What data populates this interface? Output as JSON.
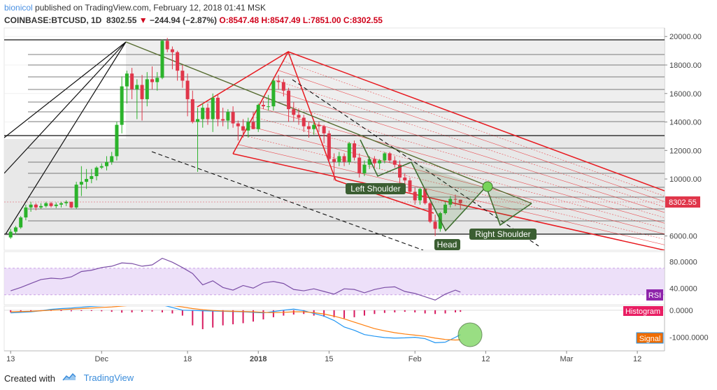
{
  "header": {
    "user": "bionicol",
    "published_text": "published on TradingView.com, February 12, 2018 01:41 MSK",
    "symbol": "COINBASE:BTCUSD, 1D",
    "last": "8302.55",
    "change": "−244.94 (−2.87%)",
    "open": "O:8547.48",
    "high": "H:8547.49",
    "low": "L:7851.00",
    "close": "C:8302.55"
  },
  "footer": {
    "created_with": "Created with",
    "brand": "TradingView"
  },
  "chart_data": [
    {
      "type": "candlestick",
      "price_axis": {
        "ticks": [
          "20000.00",
          "18000.00",
          "16000.00",
          "14000.00",
          "12000.00",
          "10000.00",
          "6000.00"
        ],
        "tick_values": [
          20000,
          18000,
          16000,
          14000,
          12000,
          10000,
          6000
        ],
        "current_price_label": "8302.55",
        "ylim": [
          5000,
          20600
        ]
      },
      "time_axis": {
        "labels": [
          "13",
          "Dec",
          "18",
          "2018",
          "15",
          "Feb",
          "12",
          "Mar",
          "12"
        ],
        "label_days": [
          0,
          18,
          35,
          49,
          63,
          80,
          94,
          110,
          124
        ]
      },
      "xlim_days": [
        -1,
        128
      ],
      "candles": [
        [
          0,
          5900,
          6500,
          5800,
          6300
        ],
        [
          1,
          6300,
          6700,
          6100,
          6600
        ],
        [
          2,
          6600,
          7400,
          6500,
          7300
        ],
        [
          3,
          7300,
          8200,
          7100,
          8000
        ],
        [
          4,
          8000,
          8400,
          7700,
          8200
        ],
        [
          5,
          8200,
          8300,
          7800,
          8000
        ],
        [
          6,
          8000,
          8300,
          7900,
          8100
        ],
        [
          7,
          8100,
          8400,
          8000,
          8300
        ],
        [
          8,
          8300,
          8400,
          8000,
          8100
        ],
        [
          9,
          8100,
          8350,
          7950,
          8200
        ],
        [
          10,
          8200,
          8400,
          8000,
          8300
        ],
        [
          11,
          8300,
          8500,
          8100,
          8400
        ],
        [
          12,
          8400,
          8350,
          7950,
          8000
        ],
        [
          13,
          8000,
          9800,
          7900,
          9600
        ],
        [
          14,
          9600,
          10900,
          8800,
          9800
        ],
        [
          15,
          9800,
          10700,
          9300,
          10000
        ],
        [
          16,
          10000,
          10700,
          9700,
          10200
        ],
        [
          17,
          10200,
          10900,
          9900,
          10800
        ],
        [
          18,
          10800,
          11100,
          10700,
          10900
        ],
        [
          19,
          10900,
          11600,
          10600,
          11200
        ],
        [
          20,
          11200,
          11900,
          11000,
          11600
        ],
        [
          21,
          11600,
          14000,
          11300,
          13800
        ],
        [
          22,
          13800,
          17200,
          13200,
          16500
        ],
        [
          23,
          16500,
          17600,
          15300,
          17400
        ],
        [
          24,
          17400,
          17800,
          15600,
          16300
        ],
        [
          25,
          16300,
          17000,
          14200,
          16600
        ],
        [
          26,
          16600,
          17300,
          14100,
          15600
        ],
        [
          27,
          15600,
          17500,
          15100,
          17000
        ],
        [
          28,
          17000,
          17900,
          16300,
          16800
        ],
        [
          29,
          16800,
          17500,
          16200,
          17100
        ],
        [
          30,
          17100,
          19800,
          17000,
          19700
        ],
        [
          31,
          19700,
          19900,
          18900,
          19100
        ],
        [
          32,
          19100,
          19300,
          17700,
          18900
        ],
        [
          33,
          18900,
          19000,
          16900,
          17600
        ],
        [
          34,
          17600,
          18000,
          16400,
          16900
        ],
        [
          35,
          16900,
          17400,
          14400,
          15600
        ],
        [
          36,
          15600,
          16200,
          13900,
          14000
        ],
        [
          37,
          14000,
          15000,
          10500,
          14200
        ],
        [
          38,
          14200,
          15300,
          13600,
          15000
        ],
        [
          39,
          15000,
          15300,
          13800,
          14200
        ],
        [
          40,
          14200,
          16000,
          13300,
          15700
        ],
        [
          41,
          15700,
          15900,
          13700,
          14200
        ],
        [
          42,
          14200,
          15000,
          13700,
          14100
        ],
        [
          43,
          14100,
          14900,
          13500,
          14700
        ],
        [
          44,
          14700,
          15100,
          13600,
          13900
        ],
        [
          45,
          13900,
          14100,
          12700,
          13700
        ],
        [
          46,
          13700,
          14200,
          12900,
          13400
        ],
        [
          47,
          13400,
          14300,
          12900,
          14000
        ],
        [
          48,
          14000,
          14700,
          13500,
          13500
        ],
        [
          49,
          13500,
          15300,
          13300,
          15200
        ],
        [
          50,
          15200,
          15500,
          14900,
          15100
        ],
        [
          51,
          15100,
          15900,
          14800,
          15100
        ],
        [
          52,
          15100,
          17000,
          14800,
          16900
        ],
        [
          53,
          16900,
          17300,
          16300,
          16800
        ],
        [
          54,
          16800,
          17000,
          15800,
          16200
        ],
        [
          55,
          16200,
          16400,
          14000,
          14900
        ],
        [
          56,
          14900,
          15400,
          14000,
          14500
        ],
        [
          57,
          14500,
          14900,
          13800,
          14300
        ],
        [
          58,
          14300,
          14500,
          13300,
          13700
        ],
        [
          59,
          13700,
          14000,
          12900,
          13500
        ],
        [
          60,
          13500,
          14000,
          13100,
          13800
        ],
        [
          61,
          13800,
          14000,
          13300,
          13700
        ],
        [
          62,
          13700,
          13800,
          12500,
          13200
        ],
        [
          63,
          13200,
          13400,
          11100,
          11400
        ],
        [
          64,
          11400,
          11800,
          9900,
          11200
        ],
        [
          65,
          11200,
          11900,
          10900,
          11600
        ],
        [
          66,
          11600,
          11800,
          10900,
          11200
        ],
        [
          67,
          11200,
          12600,
          11000,
          12500
        ],
        [
          68,
          12500,
          12700,
          11300,
          11500
        ],
        [
          69,
          11500,
          11800,
          10100,
          10400
        ],
        [
          70,
          10400,
          11300,
          10200,
          11000
        ],
        [
          71,
          11000,
          11600,
          10700,
          11400
        ],
        [
          72,
          11400,
          11600,
          10800,
          11100
        ],
        [
          73,
          11100,
          11400,
          10700,
          11300
        ],
        [
          74,
          11300,
          11900,
          11100,
          11800
        ],
        [
          75,
          11800,
          11900,
          11200,
          11300
        ],
        [
          76,
          11300,
          11600,
          10800,
          11000
        ],
        [
          77,
          11000,
          11300,
          9700,
          10100
        ],
        [
          78,
          10100,
          10400,
          9200,
          9900
        ],
        [
          79,
          9900,
          10100,
          9000,
          9100
        ],
        [
          80,
          9100,
          9400,
          8200,
          8500
        ],
        [
          81,
          8500,
          9400,
          8200,
          9300
        ],
        [
          82,
          9300,
          9300,
          8200,
          8300
        ],
        [
          83,
          8300,
          8400,
          6900,
          7000
        ],
        [
          84,
          7000,
          7500,
          6000,
          6500
        ],
        [
          85,
          6500,
          7700,
          6300,
          7600
        ],
        [
          86,
          7600,
          8400,
          7500,
          8200
        ],
        [
          87,
          8200,
          8800,
          8000,
          8600
        ],
        [
          88,
          8600,
          8900,
          8100,
          8550
        ],
        [
          89,
          8547.48,
          8547.49,
          7851,
          8302.55
        ]
      ],
      "annotations": [
        "Left Shoulder",
        "Head",
        "Right Shoulder"
      ],
      "colors": {
        "up": "#2bb32b",
        "down": "#e0364a",
        "pitchfork": "#e8191f",
        "trend": "#556b2f",
        "pattern": "#4a7d3a"
      }
    },
    {
      "type": "line",
      "indicator": "RSI",
      "label": "RSI",
      "ticks": [
        "80.0000",
        "40.0000"
      ],
      "tick_values": [
        80,
        40
      ],
      "ylim": [
        15,
        95
      ],
      "band": [
        30,
        70
      ],
      "x": [
        0,
        2,
        4,
        6,
        8,
        10,
        12,
        14,
        16,
        18,
        20,
        22,
        24,
        26,
        28,
        30,
        32,
        34,
        36,
        38,
        40,
        42,
        44,
        46,
        48,
        50,
        52,
        54,
        56,
        58,
        60,
        62,
        64,
        66,
        68,
        70,
        72,
        74,
        76,
        78,
        80,
        82,
        84,
        86,
        88,
        89
      ],
      "values": [
        36,
        41,
        47,
        53,
        55,
        54,
        57,
        65,
        67,
        71,
        73,
        78,
        77,
        73,
        75,
        85,
        79,
        71,
        62,
        45,
        51,
        41,
        37,
        44,
        40,
        48,
        50,
        47,
        38,
        36,
        39,
        35,
        31,
        39,
        38,
        33,
        38,
        41,
        42,
        35,
        32,
        27,
        22,
        31,
        37,
        34
      ],
      "color": "#7b4ea6"
    },
    {
      "type": "histogram",
      "indicator": "MACD",
      "labels": [
        "Histogram",
        "Signal"
      ],
      "ticks": [
        "0.0000",
        "-1000.0000"
      ],
      "tick_values": [
        0,
        -1000
      ],
      "ylim": [
        -1500,
        150
      ],
      "x": [
        0,
        2,
        4,
        6,
        8,
        10,
        12,
        14,
        16,
        18,
        20,
        22,
        24,
        26,
        28,
        30,
        32,
        34,
        36,
        38,
        40,
        42,
        44,
        46,
        48,
        50,
        52,
        54,
        56,
        58,
        60,
        62,
        64,
        66,
        68,
        70,
        72,
        74,
        76,
        78,
        80,
        82,
        84,
        86,
        88,
        89
      ],
      "histogram": [
        -80,
        -60,
        -40,
        -20,
        -10,
        -30,
        -40,
        -30,
        -30,
        -40,
        -60,
        -90,
        -80,
        -60,
        -50,
        -80,
        -120,
        -200,
        -560,
        -700,
        -640,
        -560,
        -520,
        -480,
        -420,
        -340,
        -260,
        -200,
        -160,
        -140,
        -200,
        -240,
        -260,
        -300,
        -260,
        -200,
        -140,
        -100,
        -80,
        -60,
        -80,
        -120,
        -140,
        -120,
        -80,
        -60
      ],
      "macd": [
        -100,
        -80,
        -60,
        -20,
        30,
        60,
        80,
        110,
        140,
        160,
        180,
        220,
        260,
        250,
        230,
        190,
        100,
        0,
        -10,
        -20,
        -30,
        -40,
        -50,
        -60,
        -80,
        -100,
        -50,
        0,
        40,
        -20,
        -120,
        -220,
        -380,
        -620,
        -740,
        -900,
        -960,
        -1010,
        -1030,
        -1020,
        -1000,
        -1050,
        -1200,
        -1180,
        -1000,
        -900
      ],
      "signal": [
        -60,
        -50,
        -40,
        -20,
        0,
        20,
        40,
        60,
        80,
        100,
        120,
        150,
        180,
        200,
        210,
        200,
        170,
        120,
        60,
        20,
        -10,
        -30,
        -40,
        -50,
        -60,
        -80,
        -90,
        -80,
        -60,
        -60,
        -90,
        -140,
        -220,
        -320,
        -440,
        -560,
        -680,
        -760,
        -830,
        -880,
        -920,
        -960,
        -1030,
        -1080,
        -1100,
        -1090
      ],
      "colors": {
        "histogram": "#d81b60",
        "macd": "#2196f3",
        "signal": "#ff7f0e"
      }
    }
  ]
}
